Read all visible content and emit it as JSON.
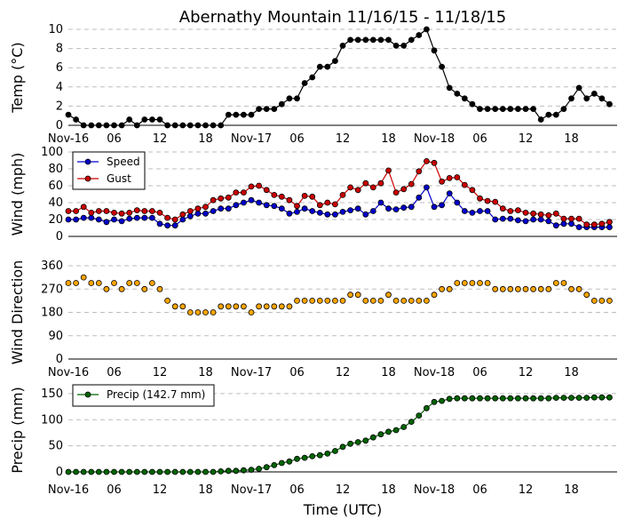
{
  "chart_data": [
    {
      "type": "line",
      "title": "Abernathy Mountain 11/16/15 - 11/18/15",
      "ylabel": "Temp ($^\\circ$C)",
      "ylabel_text": "Temp (",
      "ylabel_unit": "°C)",
      "ylim": [
        0,
        10
      ],
      "yticks": [
        0,
        2,
        4,
        6,
        8,
        10
      ],
      "color": "#000000",
      "series": [
        {
          "name": "Temp",
          "values": [
            1.1,
            0.6,
            0,
            0,
            0,
            0,
            0,
            0,
            0.6,
            0,
            0.6,
            0.6,
            0.6,
            0,
            0,
            0,
            0,
            0,
            0,
            0,
            0,
            1.1,
            1.1,
            1.1,
            1.1,
            1.7,
            1.7,
            1.7,
            2.2,
            2.8,
            2.8,
            4.4,
            5,
            6.1,
            6.1,
            6.7,
            8.3,
            8.9,
            8.9,
            8.9,
            8.9,
            8.9,
            8.9,
            8.3,
            8.3,
            8.9,
            9.4,
            10,
            7.8,
            6.1,
            3.9,
            3.3,
            2.8,
            2.2,
            1.7,
            1.7,
            1.7,
            1.7,
            1.7,
            1.7,
            1.7,
            1.7,
            0.6,
            1.1,
            1.1,
            1.7,
            2.8,
            3.9,
            2.8,
            3.3,
            2.8,
            2.2
          ]
        }
      ]
    },
    {
      "type": "line",
      "ylabel": "Wind (mph)",
      "ylim": [
        0,
        100
      ],
      "yticks": [
        0,
        20,
        40,
        60,
        80,
        100
      ],
      "legend": "top-left",
      "series": [
        {
          "name": "Speed",
          "color": "#0000cc",
          "values": [
            20,
            20,
            22,
            22,
            20,
            17,
            20,
            18,
            21,
            22,
            22,
            22,
            15,
            13,
            13,
            20,
            24,
            27,
            27,
            30,
            33,
            33,
            37,
            40,
            43,
            40,
            37,
            36,
            33,
            27,
            29,
            33,
            30,
            28,
            26,
            26,
            29,
            31,
            33,
            26,
            30,
            40,
            33,
            32,
            34,
            35,
            46,
            58,
            35,
            37,
            51,
            40,
            30,
            28,
            30,
            30,
            20,
            21,
            21,
            19,
            18,
            20,
            20,
            18,
            13,
            15,
            15,
            11,
            11,
            11,
            11,
            11
          ]
        },
        {
          "name": "Gust",
          "color": "#cc0000",
          "values": [
            30,
            30,
            35,
            28,
            30,
            30,
            28,
            27,
            28,
            31,
            30,
            30,
            28,
            22,
            20,
            26,
            30,
            33,
            35,
            43,
            45,
            46,
            52,
            52,
            59,
            60,
            55,
            49,
            47,
            43,
            36,
            48,
            47,
            37,
            40,
            38,
            49,
            58,
            55,
            63,
            58,
            63,
            78,
            52,
            56,
            62,
            77,
            89,
            87,
            65,
            69,
            70,
            61,
            55,
            45,
            42,
            41,
            33,
            30,
            31,
            28,
            27,
            26,
            25,
            27,
            21,
            21,
            21,
            14,
            14,
            15,
            17
          ]
        }
      ]
    },
    {
      "type": "scatter",
      "ylabel": "Wind Direction",
      "ylim": [
        0,
        360
      ],
      "yticks": [
        0,
        90,
        180,
        270,
        360
      ],
      "color": "#ffa500",
      "series": [
        {
          "name": "Direction",
          "values": [
            293,
            293,
            315,
            293,
            293,
            270,
            293,
            270,
            293,
            293,
            270,
            293,
            270,
            225,
            203,
            203,
            180,
            180,
            180,
            180,
            203,
            203,
            203,
            203,
            180,
            203,
            203,
            203,
            203,
            203,
            225,
            225,
            225,
            225,
            225,
            225,
            225,
            248,
            248,
            225,
            225,
            225,
            248,
            225,
            225,
            225,
            225,
            225,
            248,
            270,
            270,
            293,
            293,
            293,
            293,
            293,
            270,
            270,
            270,
            270,
            270,
            270,
            270,
            270,
            293,
            293,
            270,
            270,
            248,
            225,
            225,
            225
          ]
        }
      ]
    },
    {
      "type": "line",
      "ylabel": "Precip (mm)",
      "xlabel": "Time (UTC)",
      "ylim": [
        0,
        160
      ],
      "yticks": [
        0,
        50,
        100,
        150
      ],
      "legend": "top-left",
      "color": "#006400",
      "series": [
        {
          "name": "Precip (142.7 mm)",
          "values": [
            0,
            0,
            0,
            0,
            0,
            0,
            0,
            0,
            0,
            0,
            0,
            0,
            0,
            0,
            0,
            0,
            0,
            0,
            0,
            0,
            1,
            2,
            2,
            3,
            4,
            6,
            9,
            13,
            17,
            20,
            25,
            27,
            30,
            32,
            35,
            40,
            48,
            54,
            57,
            60,
            66,
            72,
            77,
            80,
            86,
            96,
            108,
            122,
            134,
            136,
            140,
            141,
            141,
            141,
            141,
            141,
            141,
            141,
            141,
            141,
            141,
            141,
            141,
            141,
            142,
            142,
            142,
            142,
            142,
            142.7,
            142.7,
            142.7
          ]
        }
      ]
    }
  ],
  "xaxis": {
    "ticks": [
      "Nov-16",
      "06",
      "12",
      "18",
      "Nov-17",
      "06",
      "12",
      "18",
      "Nov-18",
      "06",
      "12",
      "18"
    ],
    "label": "Time (UTC)"
  }
}
